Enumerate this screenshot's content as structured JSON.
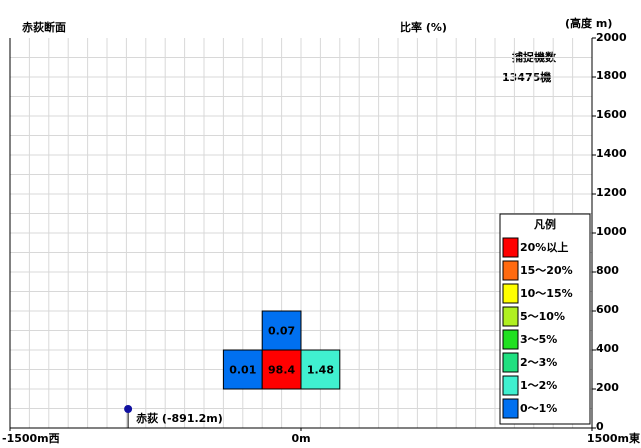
{
  "chart_data": {
    "type": "cells",
    "title": "赤荻断面",
    "value_label": "比率 (%)",
    "y_label": "(高度 m)",
    "count_title": "捕捉機数",
    "count_text": "13475機",
    "xlim": [
      -1500,
      1500
    ],
    "ylim": [
      0,
      2000
    ],
    "xticks": [
      {
        "value": -1500,
        "label": "-1500m西"
      },
      {
        "value": 0,
        "label": "0m"
      },
      {
        "value": 1500,
        "label": "1500m東"
      }
    ],
    "yticks": [
      0,
      200,
      400,
      600,
      800,
      1000,
      1200,
      1400,
      1600,
      1800,
      2000
    ],
    "grid": true,
    "grid_step": 100,
    "cells": [
      {
        "x0": -400,
        "x1": -200,
        "y0": 200,
        "y1": 400,
        "value": 0.01,
        "color": "#0070f0"
      },
      {
        "x0": -200,
        "x1": 0,
        "y0": 200,
        "y1": 400,
        "value": 98.4,
        "color": "#ff0000"
      },
      {
        "x0": 0,
        "x1": 200,
        "y0": 200,
        "y1": 400,
        "value": 1.48,
        "color": "#40f0d0"
      },
      {
        "x0": -200,
        "x1": 0,
        "y0": 400,
        "y1": 600,
        "value": 0.07,
        "color": "#0070f0"
      }
    ],
    "station": {
      "x": -891.2,
      "label": "赤荻 (-891.2m)",
      "color": "#1010a0"
    },
    "legend": {
      "title": "凡例",
      "items": [
        {
          "label": "20%以上",
          "color": "#ff0000"
        },
        {
          "label": "15～20%",
          "color": "#ff6a10"
        },
        {
          "label": "10～15%",
          "color": "#ffff00"
        },
        {
          "label": "5～10%",
          "color": "#b0f020"
        },
        {
          "label": "3～5%",
          "color": "#20e020"
        },
        {
          "label": "2～3%",
          "color": "#20e080"
        },
        {
          "label": "1～2%",
          "color": "#40f0d0"
        },
        {
          "label": "0～1%",
          "color": "#0070f0"
        }
      ]
    }
  }
}
